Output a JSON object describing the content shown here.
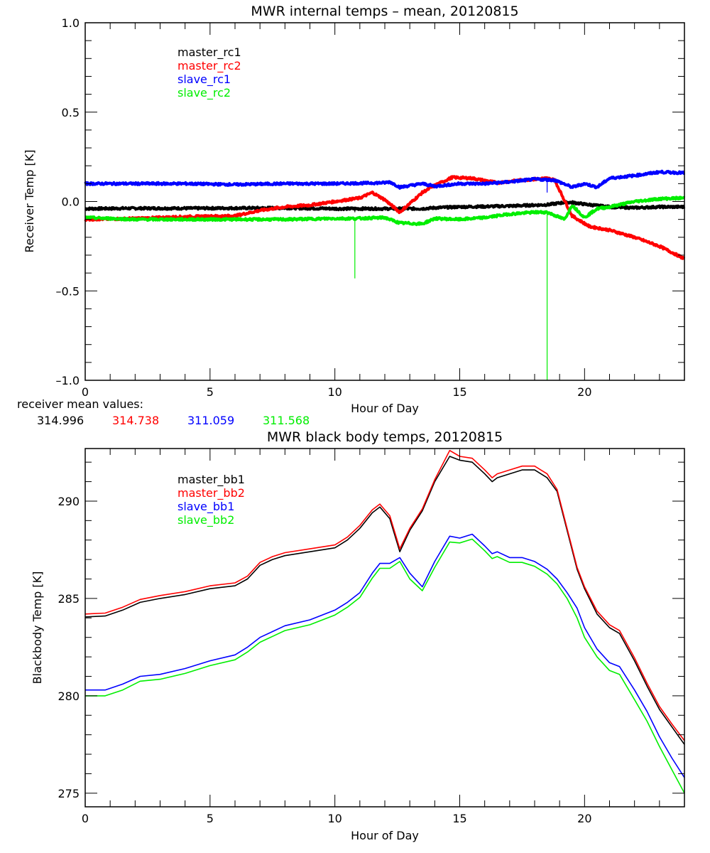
{
  "chart_data": [
    {
      "type": "line",
      "title": "MWR internal temps – mean, 20120815",
      "xlabel": "Hour of Day",
      "ylabel": "Receiver Temp [K]",
      "xlim": [
        0,
        24
      ],
      "ylim": [
        -1.0,
        1.0
      ],
      "xticks": [
        0,
        5,
        10,
        15,
        20
      ],
      "xtick_labels": [
        "0",
        "5",
        "10",
        "15",
        "20"
      ],
      "yticks": [
        1.0,
        0.5,
        0.0,
        -0.5,
        -1.0
      ],
      "ytick_labels": [
        "1.0",
        "0.5",
        "0.0",
        "–0.5",
        "–1.0"
      ],
      "grid": false,
      "legend_position": "top-left",
      "series": [
        {
          "name": "master_rc1",
          "color": "#000000",
          "x": [
            0,
            2,
            4,
            6,
            8,
            10,
            11,
            12,
            12.3,
            12.6,
            13.5,
            14,
            15,
            16,
            17,
            18,
            18.5,
            19.2,
            19.5,
            20,
            21,
            22,
            23,
            24
          ],
          "y": [
            -0.04,
            -0.038,
            -0.038,
            -0.037,
            -0.036,
            -0.04,
            -0.04,
            -0.04,
            -0.04,
            -0.04,
            -0.04,
            -0.035,
            -0.03,
            -0.028,
            -0.025,
            -0.02,
            -0.018,
            -0.005,
            -0.005,
            -0.015,
            -0.03,
            -0.035,
            -0.03,
            -0.03
          ]
        },
        {
          "name": "master_rc2",
          "color": "#ff0000",
          "x": [
            0,
            2,
            4,
            6,
            7,
            8,
            9,
            10,
            11,
            11.5,
            12,
            12.6,
            13.5,
            14,
            14.7,
            15.5,
            16.5,
            17.5,
            18.5,
            18.8,
            19.5,
            20.2,
            21,
            22,
            23,
            24
          ],
          "y": [
            -0.1,
            -0.095,
            -0.085,
            -0.08,
            -0.05,
            -0.03,
            -0.02,
            0.0,
            0.02,
            0.05,
            0.01,
            -0.06,
            0.05,
            0.09,
            0.135,
            0.13,
            0.105,
            0.12,
            0.13,
            0.12,
            -0.08,
            -0.14,
            -0.16,
            -0.2,
            -0.25,
            -0.32
          ]
        },
        {
          "name": "slave_rc1",
          "color": "#0000ff",
          "x": [
            0,
            2,
            4,
            6,
            8,
            10,
            12,
            12.2,
            12.6,
            13.5,
            14,
            15,
            16,
            17,
            18,
            18.8,
            19.5,
            20,
            20.5,
            21,
            22,
            23,
            24
          ],
          "y": [
            0.1,
            0.1,
            0.1,
            0.095,
            0.1,
            0.1,
            0.105,
            0.11,
            0.08,
            0.1,
            0.085,
            0.1,
            0.1,
            0.11,
            0.125,
            0.12,
            0.08,
            0.1,
            0.08,
            0.13,
            0.145,
            0.165,
            0.16
          ]
        },
        {
          "name": "slave_rc2",
          "color": "#00ee00",
          "x": [
            0,
            2,
            4,
            6,
            8,
            10,
            10.8,
            12,
            12.6,
            13.5,
            14,
            15,
            16,
            17,
            18,
            18.5,
            19.2,
            19.5,
            20,
            20.5,
            21,
            22,
            23,
            24
          ],
          "y": [
            -0.09,
            -0.1,
            -0.1,
            -0.1,
            -0.1,
            -0.095,
            -0.095,
            -0.09,
            -0.12,
            -0.125,
            -0.095,
            -0.1,
            -0.09,
            -0.07,
            -0.06,
            -0.06,
            -0.1,
            -0.02,
            -0.09,
            -0.04,
            -0.03,
            0.0,
            0.015,
            0.02
          ]
        }
      ],
      "spikes": [
        {
          "series": "slave_rc2",
          "x": 10.8,
          "y_from": -0.09,
          "y_to": -0.43
        },
        {
          "series": "slave_rc2",
          "x": 18.5,
          "y_from": -0.06,
          "y_to": -1.0
        },
        {
          "series": "slave_rc1",
          "x": 18.5,
          "y_from": 0.12,
          "y_to": 0.05
        },
        {
          "series": "master_rc1",
          "x": 10.8,
          "y_from": -0.04,
          "y_to": -0.06
        }
      ],
      "annotation": {
        "label": "receiver mean values:",
        "values": [
          {
            "text": "314.996",
            "color": "#000000"
          },
          {
            "text": "314.738",
            "color": "#ff0000"
          },
          {
            "text": "311.059",
            "color": "#0000ff"
          },
          {
            "text": "311.568",
            "color": "#00ee00"
          }
        ]
      }
    },
    {
      "type": "line",
      "title": "MWR black body temps, 20120815",
      "xlabel": "Hour of Day",
      "ylabel": "Blackbody Temp [K]",
      "xlim": [
        0,
        24
      ],
      "ylim": [
        274.3,
        292.7
      ],
      "xticks": [
        0,
        5,
        10,
        15,
        20
      ],
      "xtick_labels": [
        "0",
        "5",
        "10",
        "15",
        "20"
      ],
      "yticks": [
        275,
        280,
        285,
        290
      ],
      "ytick_labels": [
        "275",
        "280",
        "285",
        "290"
      ],
      "grid": false,
      "legend_position": "top-left",
      "series": [
        {
          "name": "master_bb1",
          "color": "#000000",
          "x": [
            0,
            0.8,
            1.5,
            2.2,
            3,
            4,
            5,
            6,
            6.5,
            7,
            7.5,
            8,
            9,
            10,
            10.5,
            11,
            11.5,
            11.8,
            12.2,
            12.6,
            13,
            13.5,
            14,
            14.6,
            15,
            15.5,
            16,
            16.3,
            16.5,
            17,
            17.5,
            18,
            18.5,
            18.9,
            19.3,
            19.7,
            20,
            20.5,
            21,
            21.4,
            22,
            22.5,
            23,
            23.5,
            24
          ],
          "y": [
            284.05,
            284.1,
            284.4,
            284.8,
            285.0,
            285.2,
            285.5,
            285.65,
            286.0,
            286.7,
            287.0,
            287.2,
            287.4,
            287.6,
            288.0,
            288.6,
            289.4,
            289.7,
            289.1,
            287.4,
            288.5,
            289.5,
            291.0,
            292.3,
            292.1,
            292.0,
            291.4,
            291.0,
            291.2,
            291.4,
            291.6,
            291.6,
            291.2,
            290.5,
            288.5,
            286.5,
            285.5,
            284.2,
            283.5,
            283.2,
            281.8,
            280.5,
            279.3,
            278.4,
            277.5
          ]
        },
        {
          "name": "master_bb2",
          "color": "#ff0000",
          "x": [
            0,
            0.8,
            1.5,
            2.2,
            3,
            4,
            5,
            6,
            6.5,
            7,
            7.5,
            8,
            9,
            10,
            10.5,
            11,
            11.5,
            11.8,
            12.2,
            12.6,
            13,
            13.5,
            14,
            14.6,
            15,
            15.5,
            16,
            16.3,
            16.5,
            17,
            17.5,
            18,
            18.5,
            18.9,
            19.3,
            19.7,
            20,
            20.5,
            21,
            21.4,
            22,
            22.5,
            23,
            23.5,
            24
          ],
          "y": [
            284.2,
            284.25,
            284.55,
            284.95,
            285.15,
            285.35,
            285.65,
            285.8,
            286.15,
            286.85,
            287.15,
            287.35,
            287.55,
            287.75,
            288.15,
            288.75,
            289.55,
            289.85,
            289.25,
            287.55,
            288.6,
            289.6,
            291.1,
            292.6,
            292.3,
            292.2,
            291.6,
            291.2,
            291.4,
            291.6,
            291.8,
            291.8,
            291.4,
            290.6,
            288.6,
            286.6,
            285.6,
            284.35,
            283.65,
            283.35,
            281.95,
            280.65,
            279.45,
            278.55,
            277.7
          ]
        },
        {
          "name": "slave_bb1",
          "color": "#0000ff",
          "x": [
            0,
            0.8,
            1.5,
            2.2,
            3,
            4,
            5,
            6,
            6.5,
            7,
            7.5,
            8,
            9,
            10,
            10.5,
            11,
            11.5,
            11.8,
            12.2,
            12.6,
            13,
            13.5,
            14,
            14.6,
            15,
            15.5,
            16,
            16.3,
            16.5,
            17,
            17.5,
            18,
            18.5,
            18.9,
            19.3,
            19.7,
            20,
            20.5,
            21,
            21.4,
            22,
            22.5,
            23,
            23.5,
            24
          ],
          "y": [
            280.3,
            280.3,
            280.6,
            281.0,
            281.1,
            281.4,
            281.8,
            282.1,
            282.5,
            283.0,
            283.3,
            283.6,
            283.9,
            284.4,
            284.8,
            285.3,
            286.3,
            286.8,
            286.8,
            287.1,
            286.3,
            285.6,
            286.9,
            288.2,
            288.1,
            288.3,
            287.7,
            287.3,
            287.4,
            287.1,
            287.1,
            286.9,
            286.5,
            286.0,
            285.3,
            284.5,
            283.5,
            282.4,
            281.7,
            281.5,
            280.3,
            279.2,
            277.9,
            276.8,
            275.8
          ]
        },
        {
          "name": "slave_bb2",
          "color": "#00ee00",
          "x": [
            0,
            0.8,
            1.5,
            2.2,
            3,
            4,
            5,
            6,
            6.5,
            7,
            7.5,
            8,
            9,
            10,
            10.5,
            11,
            11.5,
            11.8,
            12.2,
            12.6,
            13,
            13.5,
            14,
            14.6,
            15,
            15.5,
            16,
            16.3,
            16.5,
            17,
            17.5,
            18,
            18.5,
            18.9,
            19.3,
            19.7,
            20,
            20.5,
            21,
            21.4,
            22,
            22.5,
            23,
            23.5,
            24
          ],
          "y": [
            280.0,
            280.0,
            280.3,
            280.75,
            280.85,
            281.15,
            281.55,
            281.85,
            282.25,
            282.75,
            283.05,
            283.35,
            283.65,
            284.15,
            284.55,
            285.05,
            286.05,
            286.55,
            286.55,
            286.9,
            286.0,
            285.4,
            286.6,
            287.9,
            287.85,
            288.05,
            287.45,
            287.05,
            287.15,
            286.85,
            286.85,
            286.65,
            286.25,
            285.75,
            285.0,
            284.0,
            283.0,
            282.0,
            281.3,
            281.1,
            279.8,
            278.7,
            277.4,
            276.2,
            275.0
          ]
        }
      ]
    }
  ]
}
